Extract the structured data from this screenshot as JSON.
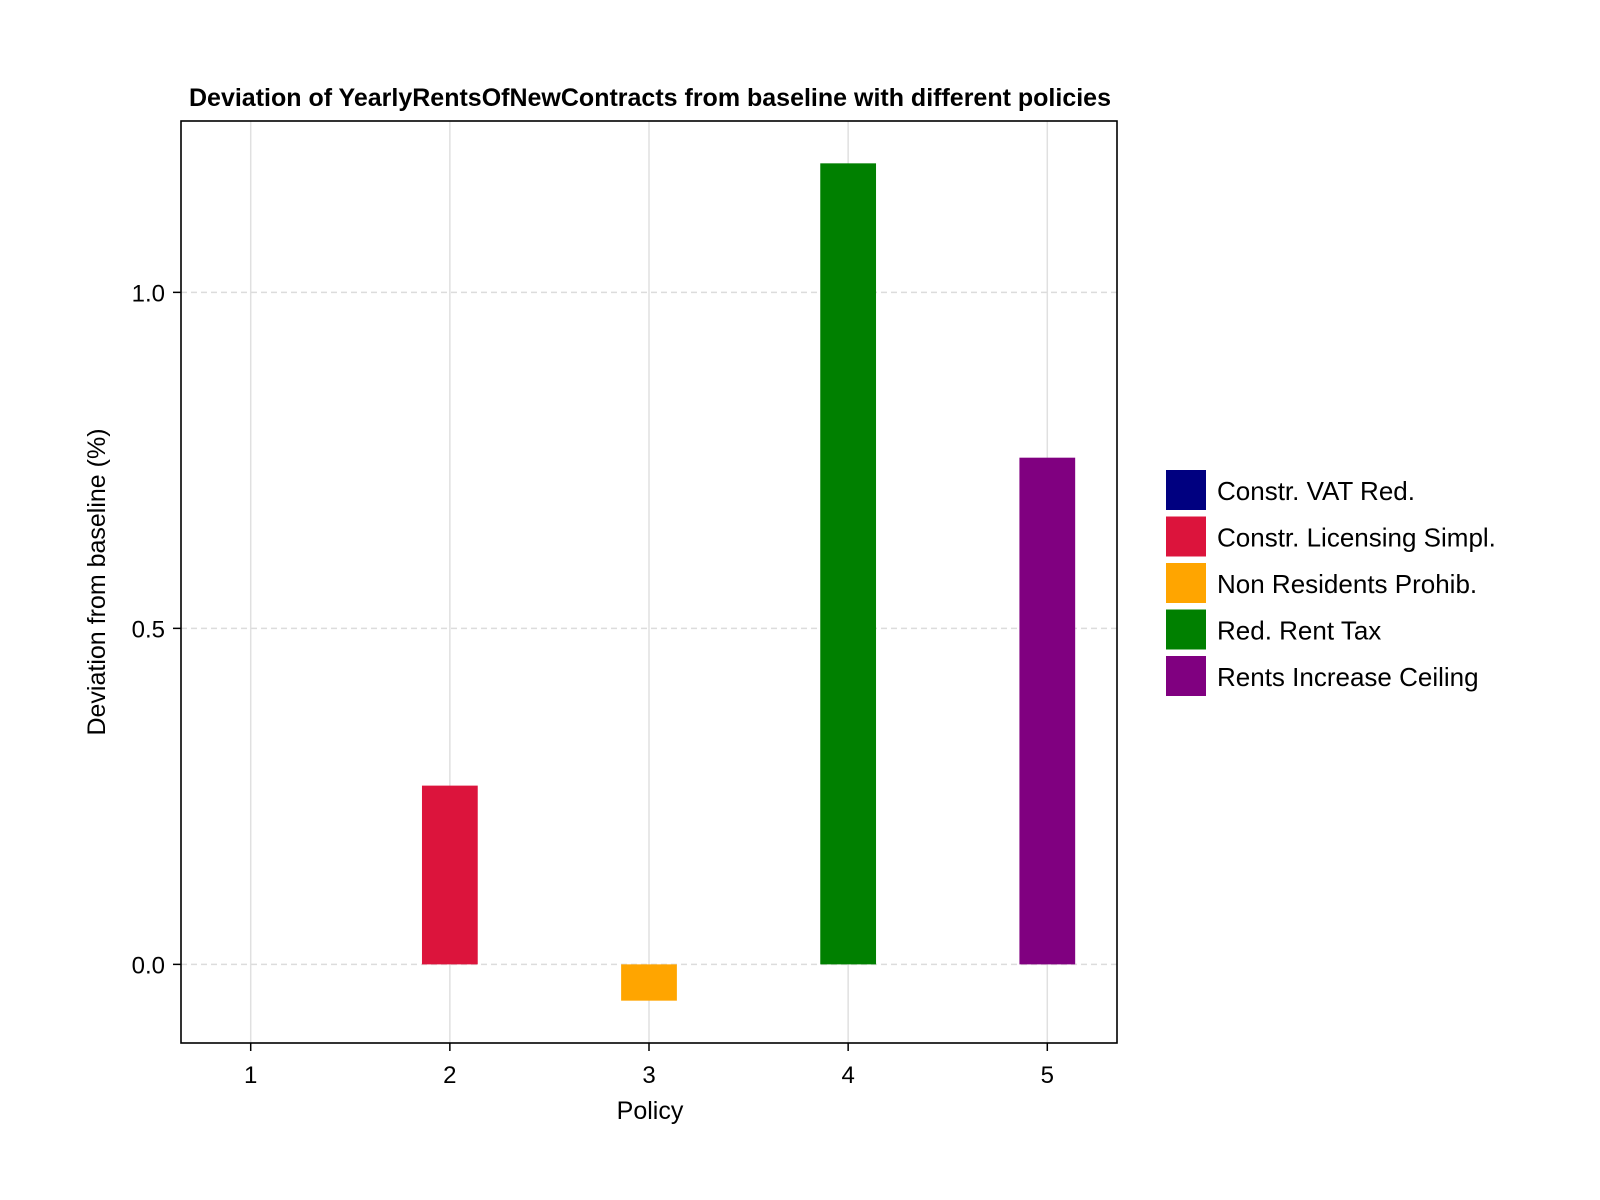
{
  "chart_data": {
    "type": "bar",
    "title": "Deviation of YearlyRentsOfNewContracts from baseline with different policies",
    "xlabel": "Policy",
    "ylabel": "Deviation from baseline (%)",
    "categories": [
      "1",
      "2",
      "3",
      "4",
      "5"
    ],
    "x": [
      1,
      2,
      3,
      4,
      5
    ],
    "values": [
      0.0,
      0.266,
      -0.054,
      1.192,
      0.754
    ],
    "series_labels": [
      "Constr. VAT Red.",
      "Constr. Licensing Simpl.",
      "Non Residents Prohib.",
      "Red. Rent Tax",
      "Rents Increase Ceiling"
    ],
    "colors": [
      "#000080",
      "#DC143C",
      "#FFA500",
      "#008000",
      "#800080"
    ],
    "xlim": [
      0.65,
      5.35
    ],
    "ylim": [
      -0.117,
      1.255
    ],
    "y_ticks": [
      0.0,
      0.5,
      1.0
    ],
    "y_tick_labels": [
      "0.0",
      "0.5",
      "1.0"
    ],
    "x_ticks": [
      1,
      2,
      3,
      4,
      5
    ],
    "x_tick_labels": [
      "1",
      "2",
      "3",
      "4",
      "5"
    ],
    "grid": true,
    "legend_position": "right"
  }
}
